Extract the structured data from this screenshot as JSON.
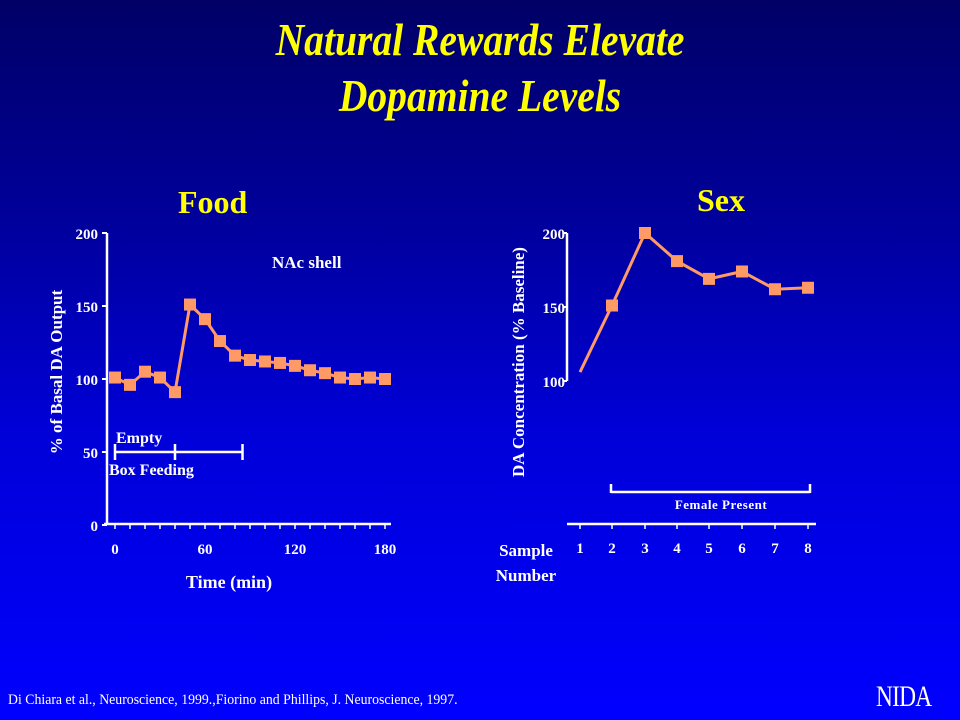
{
  "slide": {
    "title_line1": "Natural Rewards Elevate",
    "title_line2": "Dopamine Levels",
    "citation": "Di Chiara et al., Neuroscience, 1999.,Fiorino and Phillips, J. Neuroscience, 1997.",
    "logo": "NIDA",
    "colors": {
      "background_top": "#000066",
      "background_bottom": "#0000ff",
      "title": "#ffff00",
      "series": "#ff9966",
      "axis": "#ffffff"
    }
  },
  "chart_data": [
    {
      "type": "line",
      "title": "Food",
      "annotation": "NAc shell",
      "xlabel": "Time (min)",
      "ylabel": "% of Basal DA Output",
      "xlim": [
        0,
        180
      ],
      "ylim": [
        0,
        200
      ],
      "xticks": [
        0,
        60,
        120,
        180
      ],
      "yticks": [
        0,
        50,
        100,
        150,
        200
      ],
      "grid": false,
      "x": [
        0,
        10,
        20,
        30,
        40,
        50,
        60,
        70,
        80,
        90,
        100,
        110,
        120,
        130,
        140,
        150,
        160,
        170,
        180
      ],
      "series": [
        {
          "name": "DA output",
          "values": [
            101,
            96,
            105,
            101,
            91,
            151,
            141,
            126,
            116,
            113,
            112,
            111,
            109,
            106,
            104,
            101,
            100,
            101,
            100
          ]
        }
      ],
      "phase_bracket": {
        "segments": [
          [
            0,
            40
          ],
          [
            40,
            85
          ]
        ],
        "y": 50,
        "label_above": "Empty",
        "label_below": "Box Feeding"
      }
    },
    {
      "type": "line",
      "title": "Sex",
      "xlabel": "Sample Number",
      "ylabel": "DA Concentration (% Baseline)",
      "ylim": [
        100,
        200
      ],
      "yticks": [
        100,
        150,
        200
      ],
      "categories": [
        "1",
        "2",
        "3",
        "4",
        "5",
        "6",
        "7",
        "8"
      ],
      "grid": false,
      "series": [
        {
          "name": "DA concentration",
          "values": [
            106,
            151,
            200,
            181,
            169,
            174,
            162,
            163
          ],
          "markers_from_index": 1
        }
      ],
      "phase_bracket": {
        "from_sample": 2,
        "to_sample": 8,
        "label": "Female Present"
      }
    }
  ]
}
